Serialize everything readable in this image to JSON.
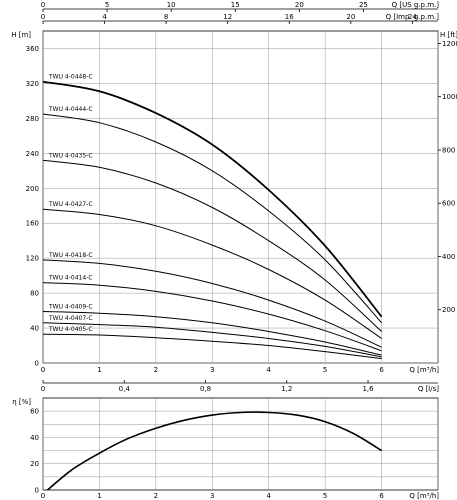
{
  "chart_data": [
    {
      "type": "line",
      "name_hint": "head-chart",
      "xlabel": "Q [m³/h]",
      "ylabel": "H [m]",
      "y2label": "H [ft]",
      "xlim": [
        0,
        7
      ],
      "ylim": [
        0,
        380
      ],
      "y2lim": [
        0,
        1246.7
      ],
      "grid": true,
      "x_ticks": [
        "0",
        "1",
        "2",
        "3",
        "4",
        "5",
        "6"
      ],
      "y_ticks": [
        "0",
        "40",
        "80",
        "120",
        "160",
        "200",
        "240",
        "280",
        "320",
        "360"
      ],
      "y2_ticks": [
        "200",
        "400",
        "600",
        "800",
        "1000",
        "1200"
      ],
      "y2_tick_values": [
        200,
        400,
        600,
        800,
        1000,
        1200
      ],
      "top_axes": [
        {
          "label": "Q [US g.p.m.]",
          "ticks": [
            "0",
            "5",
            "10",
            "15",
            "20",
            "25"
          ],
          "values": [
            0,
            5,
            10,
            15,
            20,
            25
          ],
          "factor": 4.4029
        },
        {
          "label": "Q [Imp. g.p.m.]",
          "ticks": [
            "0",
            "4",
            "8",
            "12",
            "16",
            "20",
            "24"
          ],
          "values": [
            0,
            4,
            8,
            12,
            16,
            20,
            24
          ],
          "factor": 3.6662
        }
      ],
      "bottom_axis2": {
        "label": "Q [l/s]",
        "ticks": [
          "0",
          "0,4",
          "0,8",
          "1,2",
          "1,6"
        ],
        "values": [
          0,
          0.4,
          0.8,
          1.2,
          1.6
        ],
        "factor": 0.27778
      },
      "x": [
        0,
        1,
        2,
        3,
        4,
        5,
        6
      ],
      "series": [
        {
          "name": "TWU 4-0448-C",
          "values": [
            322,
            311,
            286,
            250,
            198,
            134,
            53
          ],
          "bold": true
        },
        {
          "name": "TWU 4-0444-C",
          "values": [
            285,
            275,
            253,
            220,
            174,
            118,
            46
          ]
        },
        {
          "name": "TWU 4-0435-C",
          "values": [
            232,
            224,
            206,
            178,
            140,
            95,
            36
          ]
        },
        {
          "name": "TWU 4-0427-C",
          "values": [
            176,
            170,
            157,
            135,
            107,
            72,
            28
          ]
        },
        {
          "name": "TWU 4-0418-C",
          "values": [
            118,
            114,
            105,
            91,
            72,
            48,
            18
          ]
        },
        {
          "name": "TWU 4-0414-C",
          "values": [
            92,
            89,
            82,
            71,
            56,
            37,
            14
          ]
        },
        {
          "name": "TWU 4-0409-C",
          "values": [
            59,
            57,
            53,
            46,
            36,
            24,
            9
          ]
        },
        {
          "name": "TWU 4-0407-C",
          "values": [
            46,
            44,
            41,
            35,
            28,
            19,
            7
          ]
        },
        {
          "name": "TWU 4-0405-C",
          "values": [
            33,
            32,
            29,
            25,
            20,
            13,
            5
          ]
        }
      ]
    },
    {
      "type": "line",
      "name_hint": "efficiency-chart",
      "xlabel": "Q [m³/h]",
      "ylabel": "η [%]",
      "xlim": [
        0,
        7
      ],
      "ylim": [
        0,
        70
      ],
      "grid": true,
      "x_ticks": [
        "0",
        "1",
        "2",
        "3",
        "4",
        "5",
        "6"
      ],
      "y_ticks": [
        "0",
        "20",
        "40",
        "60"
      ],
      "x": [
        0,
        0.5,
        1,
        1.5,
        2,
        2.5,
        3,
        3.5,
        4,
        4.5,
        5,
        5.5,
        6
      ],
      "series": [
        {
          "name": "",
          "values": [
            -3,
            15,
            28,
            39,
            47,
            53,
            57,
            59,
            59,
            57,
            52,
            43,
            30
          ]
        }
      ]
    }
  ]
}
